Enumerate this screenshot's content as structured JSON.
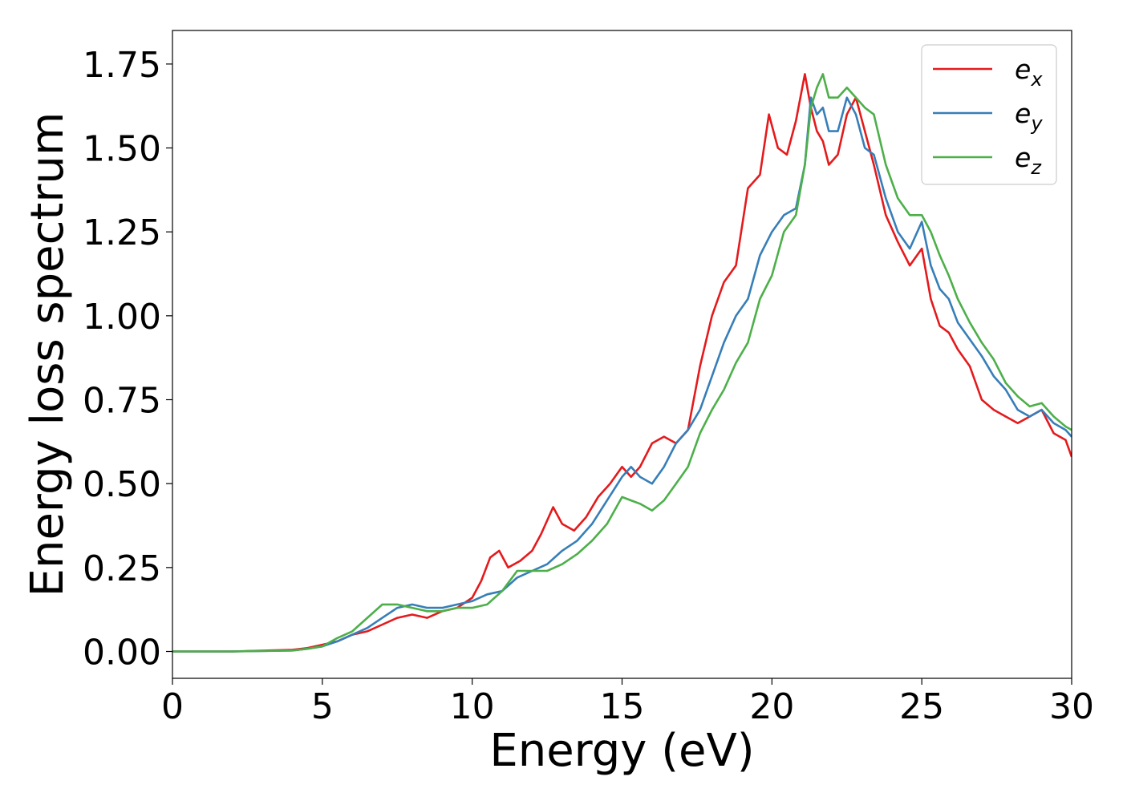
{
  "chart_data": {
    "type": "line",
    "title": "",
    "xlabel": "Energy (eV)",
    "ylabel": "Energy loss spectrum",
    "xlim": [
      0,
      30
    ],
    "ylim": [
      -0.08,
      1.85
    ],
    "xticks": [
      0,
      5,
      10,
      15,
      20,
      25,
      30
    ],
    "xtick_labels": [
      "0",
      "5",
      "10",
      "15",
      "20",
      "25",
      "30"
    ],
    "yticks": [
      0,
      0.25,
      0.5,
      0.75,
      1.0,
      1.25,
      1.5,
      1.75
    ],
    "ytick_labels": [
      "0.00",
      "0.25",
      "0.50",
      "0.75",
      "1.00",
      "1.25",
      "1.50",
      "1.75"
    ],
    "grid": false,
    "legend_position": "top-right",
    "series": [
      {
        "name": "e",
        "subscript": "x",
        "color": "#e41a1c",
        "x": [
          0,
          2,
          4,
          4.5,
          5,
          5.5,
          6,
          6.5,
          7,
          7.5,
          8,
          8.5,
          9,
          9.5,
          10,
          10.3,
          10.6,
          10.9,
          11.2,
          11.6,
          12,
          12.3,
          12.7,
          13,
          13.4,
          13.8,
          14.2,
          14.6,
          15,
          15.3,
          15.6,
          16,
          16.4,
          16.8,
          17.2,
          17.6,
          18,
          18.4,
          18.8,
          19.2,
          19.6,
          19.9,
          20.2,
          20.5,
          20.8,
          21.1,
          21.3,
          21.5,
          21.7,
          21.9,
          22.2,
          22.5,
          22.8,
          23.1,
          23.4,
          23.8,
          24.2,
          24.6,
          25.0,
          25.3,
          25.6,
          25.9,
          26.2,
          26.6,
          27.0,
          27.4,
          27.8,
          28.2,
          28.6,
          29.0,
          29.4,
          29.8,
          30
        ],
        "y": [
          0.0,
          0.0,
          0.005,
          0.01,
          0.02,
          0.03,
          0.05,
          0.06,
          0.08,
          0.1,
          0.11,
          0.1,
          0.12,
          0.13,
          0.16,
          0.21,
          0.28,
          0.3,
          0.25,
          0.27,
          0.3,
          0.35,
          0.43,
          0.38,
          0.36,
          0.4,
          0.46,
          0.5,
          0.55,
          0.52,
          0.55,
          0.62,
          0.64,
          0.62,
          0.66,
          0.85,
          1.0,
          1.1,
          1.15,
          1.38,
          1.42,
          1.6,
          1.5,
          1.48,
          1.58,
          1.72,
          1.62,
          1.55,
          1.52,
          1.45,
          1.48,
          1.6,
          1.65,
          1.55,
          1.45,
          1.3,
          1.22,
          1.15,
          1.2,
          1.05,
          0.97,
          0.95,
          0.9,
          0.85,
          0.75,
          0.72,
          0.7,
          0.68,
          0.7,
          0.72,
          0.65,
          0.63,
          0.58
        ]
      },
      {
        "name": "e",
        "subscript": "y",
        "color": "#377eb8",
        "x": [
          0,
          2,
          4,
          4.5,
          5,
          5.5,
          6,
          6.5,
          7,
          7.5,
          8,
          8.5,
          9,
          9.5,
          10,
          10.5,
          11,
          11.5,
          12,
          12.5,
          13,
          13.5,
          14,
          14.5,
          15,
          15.3,
          15.6,
          16,
          16.4,
          16.8,
          17.2,
          17.6,
          18,
          18.4,
          18.8,
          19.2,
          19.6,
          20,
          20.4,
          20.8,
          21.1,
          21.3,
          21.5,
          21.7,
          21.9,
          22.2,
          22.5,
          22.8,
          23.1,
          23.4,
          23.8,
          24.2,
          24.6,
          25.0,
          25.3,
          25.6,
          25.9,
          26.2,
          26.6,
          27.0,
          27.4,
          27.8,
          28.2,
          28.6,
          29.0,
          29.4,
          29.8,
          30
        ],
        "y": [
          0.0,
          0.0,
          0.003,
          0.008,
          0.015,
          0.03,
          0.05,
          0.07,
          0.1,
          0.13,
          0.14,
          0.13,
          0.13,
          0.14,
          0.15,
          0.17,
          0.18,
          0.22,
          0.24,
          0.26,
          0.3,
          0.33,
          0.38,
          0.45,
          0.52,
          0.55,
          0.52,
          0.5,
          0.55,
          0.62,
          0.66,
          0.72,
          0.82,
          0.92,
          1.0,
          1.05,
          1.18,
          1.25,
          1.3,
          1.32,
          1.45,
          1.65,
          1.6,
          1.62,
          1.55,
          1.55,
          1.65,
          1.6,
          1.5,
          1.48,
          1.35,
          1.25,
          1.2,
          1.28,
          1.15,
          1.08,
          1.05,
          0.98,
          0.93,
          0.88,
          0.82,
          0.78,
          0.72,
          0.7,
          0.72,
          0.68,
          0.66,
          0.64
        ]
      },
      {
        "name": "e",
        "subscript": "z",
        "color": "#4daf4a",
        "x": [
          0,
          2,
          4,
          4.5,
          5,
          5.5,
          6,
          6.5,
          7,
          7.5,
          8,
          8.5,
          9,
          9.5,
          10,
          10.5,
          11,
          11.5,
          12,
          12.5,
          13,
          13.5,
          14,
          14.5,
          15,
          15.3,
          15.6,
          16,
          16.4,
          16.8,
          17.2,
          17.6,
          18,
          18.4,
          18.8,
          19.2,
          19.6,
          20,
          20.4,
          20.8,
          21.1,
          21.3,
          21.5,
          21.7,
          21.9,
          22.2,
          22.5,
          22.8,
          23.1,
          23.4,
          23.8,
          24.2,
          24.6,
          25.0,
          25.3,
          25.6,
          25.9,
          26.2,
          26.6,
          27.0,
          27.4,
          27.8,
          28.2,
          28.6,
          29.0,
          29.4,
          29.8,
          30
        ],
        "y": [
          0.0,
          0.0,
          0.003,
          0.008,
          0.015,
          0.04,
          0.06,
          0.1,
          0.14,
          0.14,
          0.13,
          0.12,
          0.12,
          0.13,
          0.13,
          0.14,
          0.18,
          0.24,
          0.24,
          0.24,
          0.26,
          0.29,
          0.33,
          0.38,
          0.46,
          0.45,
          0.44,
          0.42,
          0.45,
          0.5,
          0.55,
          0.65,
          0.72,
          0.78,
          0.86,
          0.92,
          1.05,
          1.12,
          1.25,
          1.3,
          1.45,
          1.62,
          1.68,
          1.72,
          1.65,
          1.65,
          1.68,
          1.65,
          1.62,
          1.6,
          1.45,
          1.35,
          1.3,
          1.3,
          1.25,
          1.18,
          1.12,
          1.05,
          0.98,
          0.92,
          0.87,
          0.8,
          0.76,
          0.73,
          0.74,
          0.7,
          0.67,
          0.66
        ]
      }
    ]
  }
}
